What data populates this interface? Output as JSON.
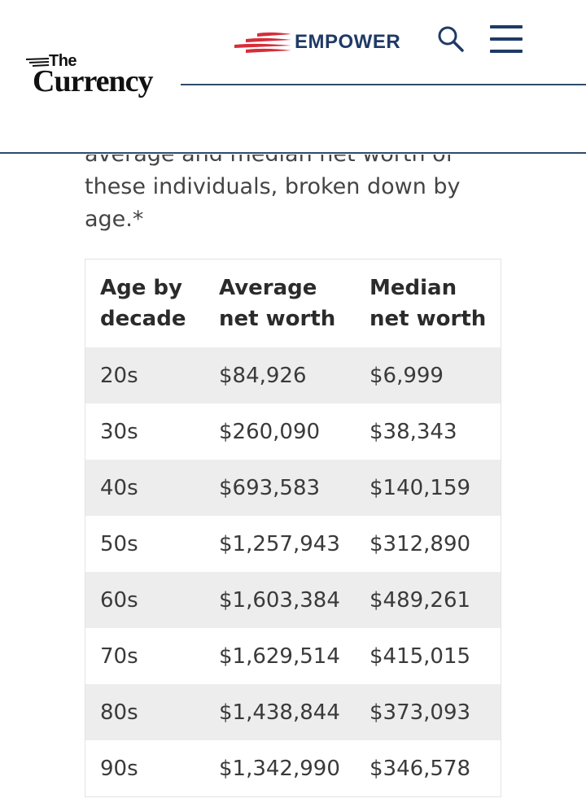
{
  "header": {
    "logo_the": "The",
    "logo_currency": "Currency",
    "brand_name": "EMPOWER",
    "search_icon": "search-icon",
    "menu_icon": "hamburger-menu-icon",
    "brand_color": "#1f3a66",
    "flag_color": "#d62e3a"
  },
  "article": {
    "line1": "average and median net worth of",
    "line2": "these individuals, broken down by",
    "line3": "age.*"
  },
  "table": {
    "headers": [
      {
        "line1": "Age by",
        "line2": "decade"
      },
      {
        "line1": "Average",
        "line2": "net worth"
      },
      {
        "line1": "Median",
        "line2": "net worth"
      }
    ],
    "rows": [
      [
        "20s",
        "$84,926",
        "$6,999"
      ],
      [
        "30s",
        "$260,090",
        "$38,343"
      ],
      [
        "40s",
        "$693,583",
        "$140,159"
      ],
      [
        "50s",
        "$1,257,943",
        "$312,890"
      ],
      [
        "60s",
        "$1,603,384",
        "$489,261"
      ],
      [
        "70s",
        "$1,629,514",
        "$415,015"
      ],
      [
        "80s",
        "$1,438,844",
        "$373,093"
      ],
      [
        "90s",
        "$1,342,990",
        "$346,578"
      ]
    ]
  }
}
